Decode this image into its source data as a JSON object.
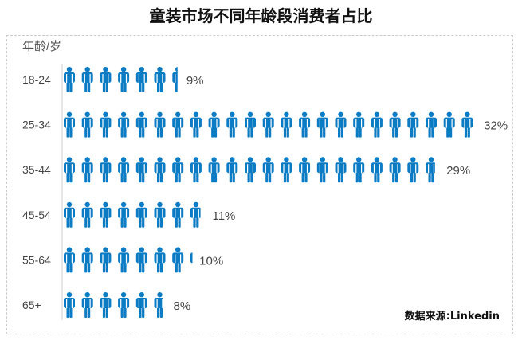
{
  "chart_data": {
    "type": "pictograph",
    "title": "童装市场不同年龄段消费者占比",
    "ylabel": "年龄/岁",
    "categories": [
      "18-24",
      "25-34",
      "35-44",
      "45-54",
      "55-64",
      "65+"
    ],
    "values": [
      9,
      32,
      29,
      11,
      10,
      8
    ],
    "value_labels": [
      "9%",
      "32%",
      "29%",
      "11%",
      "10%",
      "8%"
    ],
    "unit": "%",
    "icon": "person-icon",
    "icon_color": "#0b7bc4",
    "source": "数据来源:Linkedin"
  }
}
